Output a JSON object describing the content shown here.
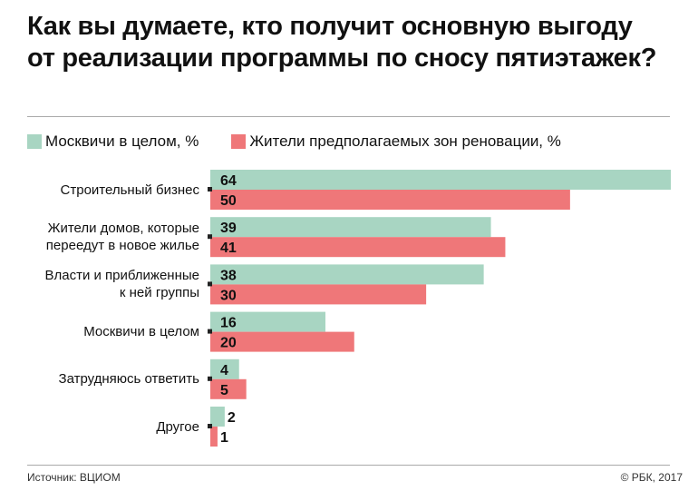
{
  "title": "Как вы думаете, кто получит основную выгоду от реализации программы по сносу пятиэтажек?",
  "source": "Источник: ВЦИОМ",
  "copyright": "© РБК, 2017",
  "chart_data": {
    "type": "bar",
    "orientation": "horizontal",
    "title": "Как вы думаете, кто получит основную выгоду от реализации программы по сносу пятиэтажек?",
    "categories": [
      "Строительный бизнес",
      "Жители домов, которые\nпереедут в новое жилье",
      "Власти и приближенные\nк ней группы",
      "Москвичи в целом",
      "Затрудняюсь ответить",
      "Другое"
    ],
    "series": [
      {
        "name": "Москвичи в целом, %",
        "color": "#a8d5c2",
        "values": [
          64,
          39,
          38,
          16,
          4,
          2
        ]
      },
      {
        "name": "Жители предполагаемых зон реновации, %",
        "color": "#ef7779",
        "values": [
          50,
          41,
          30,
          20,
          5,
          1
        ]
      }
    ],
    "xlim": [
      0,
      64
    ],
    "grid": false,
    "legend": "top-left"
  }
}
